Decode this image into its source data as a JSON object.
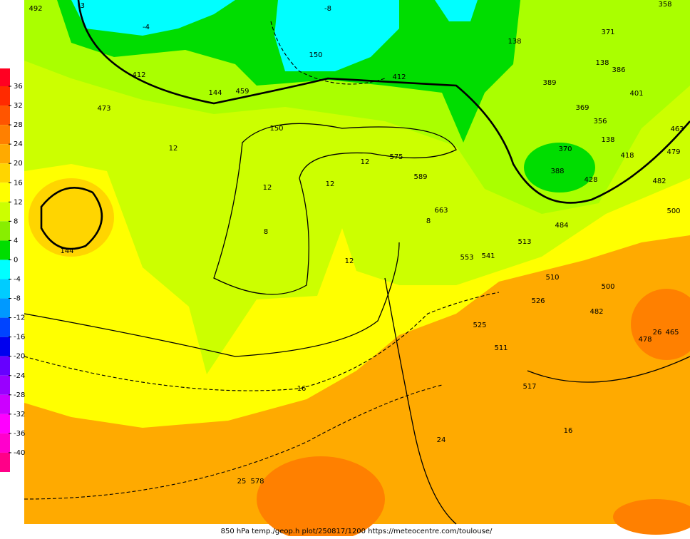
{
  "legend": {
    "ticks": [
      36,
      32,
      28,
      24,
      20,
      16,
      12,
      8,
      4,
      0,
      -4,
      -8,
      -12,
      -16,
      -20,
      -24,
      -28,
      -32,
      -36,
      -40
    ],
    "colors": [
      "#ff0022",
      "#ff2a00",
      "#ff5500",
      "#ff8000",
      "#ffaa00",
      "#ffd500",
      "#ffff00",
      "#ccff00",
      "#88ee00",
      "#00dd00",
      "#00ffff",
      "#00ccff",
      "#0099ff",
      "#0044ff",
      "#0000ee",
      "#6600ff",
      "#9900ff",
      "#cc00ff",
      "#ff00ff",
      "#ff00cc",
      "#ff0088"
    ]
  },
  "map_labels": [
    "492",
    "144",
    "144",
    "150",
    "150",
    "138",
    "138",
    "138",
    "12",
    "12",
    "12",
    "12",
    "12",
    "8",
    "8",
    "16",
    "16",
    "24",
    "459",
    "473",
    "412",
    "412",
    "575",
    "589",
    "663",
    "553",
    "500",
    "500",
    "482",
    "482",
    "465",
    "26",
    "478",
    "511",
    "517",
    "525",
    "578",
    "25",
    "386",
    "371",
    "401",
    "463",
    "479",
    "418",
    "389",
    "369",
    "356",
    "370",
    "388",
    "428",
    "484",
    "513",
    "541",
    "510",
    "526",
    "358",
    "-3",
    "-4",
    "-8"
  ],
  "caption": "850 hPa temp./geop.h plot/250817/1200 https://meteocentre.com/toulouse/"
}
